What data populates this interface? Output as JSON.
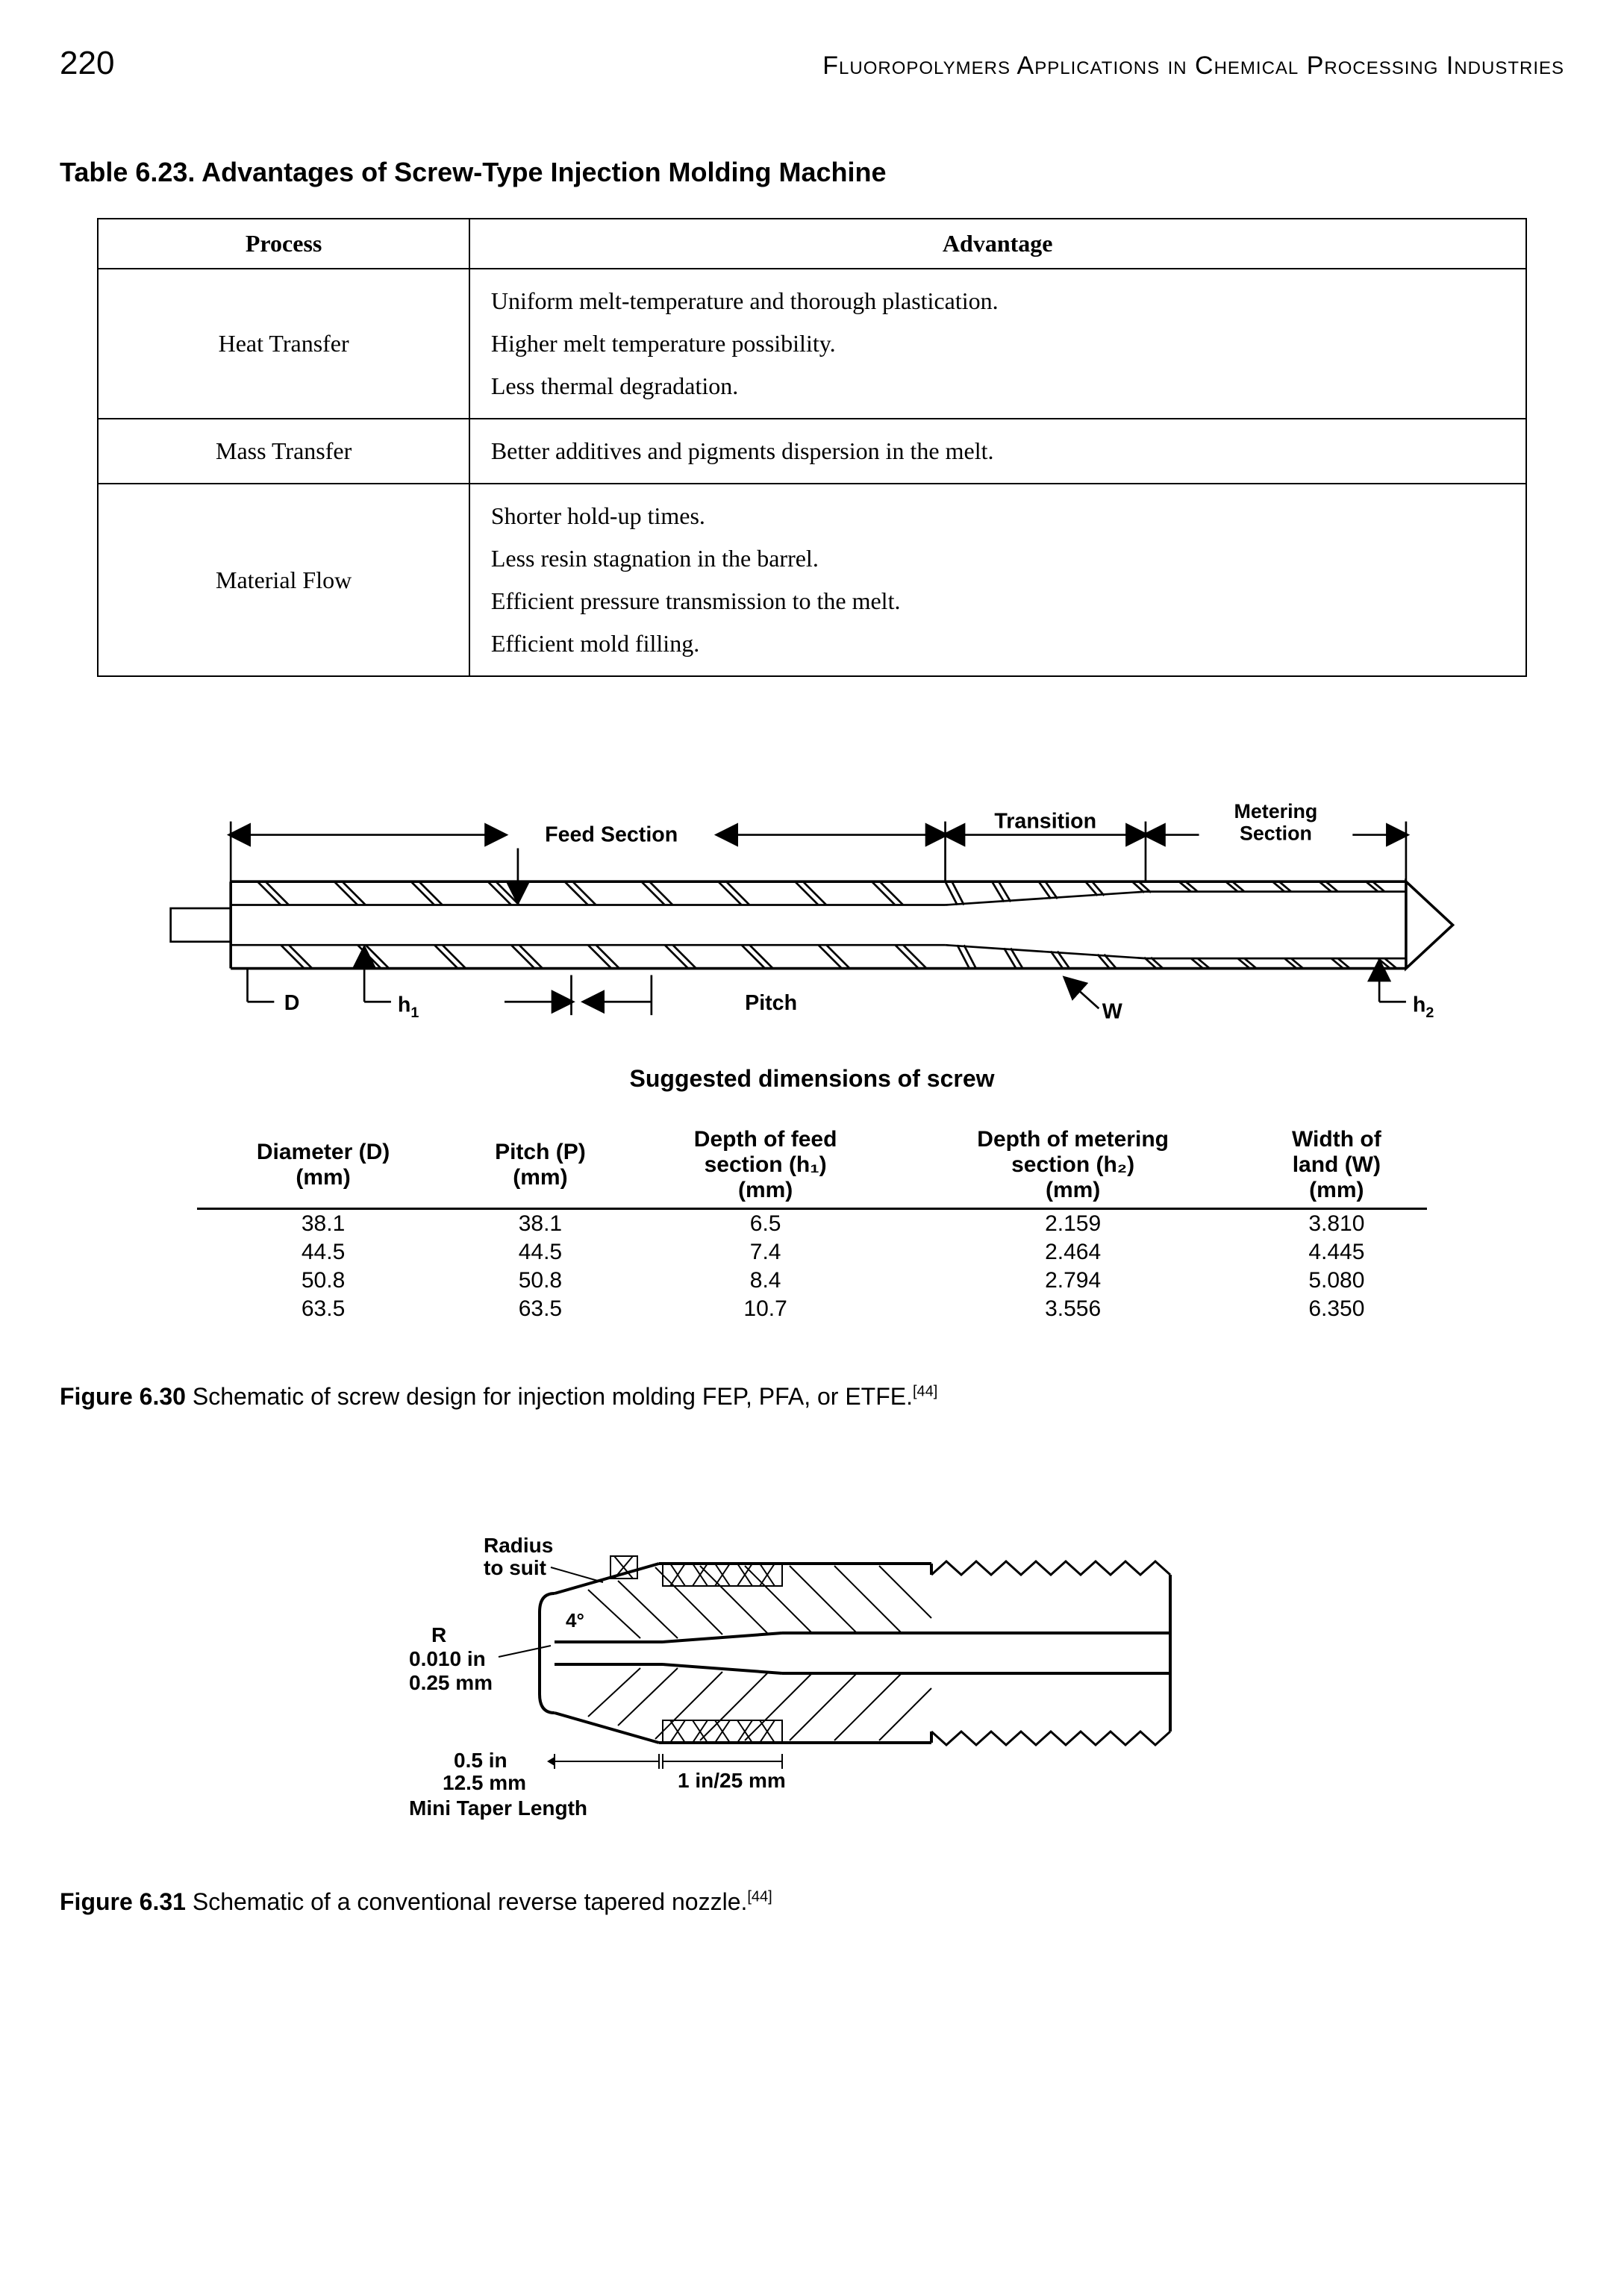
{
  "page_number": "220",
  "running_head": "Fluoropolymers Applications in Chemical Processing Industries",
  "table623": {
    "title": "Table 6.23. Advantages of Screw-Type Injection Molding Machine",
    "headers": {
      "process": "Process",
      "advantage": "Advantage"
    },
    "rows": [
      {
        "process": "Heat Transfer",
        "adv": [
          "Uniform melt-temperature and thorough plastication.",
          "Higher melt temperature possibility.",
          "Less thermal degradation."
        ]
      },
      {
        "process": "Mass Transfer",
        "adv": [
          "Better additives and pigments dispersion in the melt."
        ]
      },
      {
        "process": "Material Flow",
        "adv": [
          "Shorter hold-up times.",
          "Less resin stagnation in the barrel.",
          "Efficient pressure transmission to the melt.",
          "Efficient mold filling."
        ]
      }
    ]
  },
  "screw_diagram": {
    "labels": {
      "feed": "Feed Section",
      "transition": "Transition",
      "metering": "Metering\nSection",
      "D": "D",
      "h1": "h₁",
      "h2": "h₂",
      "pitch": "Pitch",
      "W": "W"
    },
    "subtitle": "Suggested dimensions of screw",
    "font": {
      "label_size": 30,
      "weight": "bold",
      "family": "Arial"
    },
    "stroke": "#000000",
    "fill_flight": "#000000"
  },
  "dim_table": {
    "headers": {
      "D": "Diameter (D)\n(mm)",
      "P": "Pitch (P)\n(mm)",
      "h1": "Depth of feed\nsection (h₁)\n(mm)",
      "h2": "Depth of metering\nsection (h₂)\n(mm)",
      "W": "Width of\nland (W)\n(mm)"
    },
    "rows": [
      [
        "38.1",
        "38.1",
        "6.5",
        "2.159",
        "3.810"
      ],
      [
        "44.5",
        "44.5",
        "7.4",
        "2.464",
        "4.445"
      ],
      [
        "50.8",
        "50.8",
        "8.4",
        "2.794",
        "5.080"
      ],
      [
        "63.5",
        "63.5",
        "10.7",
        "3.556",
        "6.350"
      ]
    ]
  },
  "figure630_caption": {
    "bold": "Figure 6.30",
    "text": " Schematic of screw design for injection molding FEP, PFA, or ETFE.",
    "ref": "[44]"
  },
  "nozzle_diagram": {
    "labels": {
      "radius": "Radius\nto suit",
      "R": "R\n0.010 in\n0.25 mm",
      "angle": "4°",
      "taper": "0.5 in\n12.5 mm",
      "taper_title": "Mini Taper Length",
      "land": "1 in/25 mm"
    },
    "stroke": "#000000"
  },
  "figure631_caption": {
    "bold": "Figure 6.31",
    "text": " Schematic of a conventional reverse tapered nozzle.",
    "ref": "[44]"
  }
}
